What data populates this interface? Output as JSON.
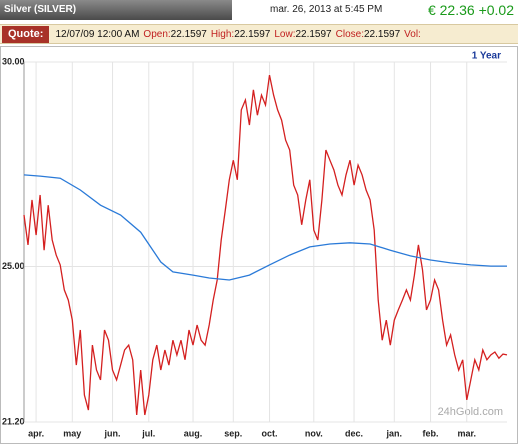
{
  "header": {
    "instrument": "Silver (SILVER)",
    "date": "mar. 26, 2013 at 5:45 PM",
    "price": "€ 22.36 +0.02"
  },
  "quote": {
    "title": "Quote:",
    "date": "12/07/09 12:00 AM",
    "fields": [
      {
        "label": "Open:",
        "value": 22.1597
      },
      {
        "label": "High:",
        "value": 22.1597
      },
      {
        "label": "Low:",
        "value": 22.1597
      },
      {
        "label": "Close:",
        "value": 22.1597
      },
      {
        "label": "Vol:"
      }
    ]
  },
  "chart_data": {
    "type": "line",
    "range": "1 Year",
    "watermark": "24hGold.com",
    "grid": true,
    "x": [
      0,
      1,
      2,
      3,
      4,
      5,
      6,
      7,
      8,
      9,
      10,
      11,
      12,
      13,
      14,
      15,
      16,
      17,
      18,
      19,
      20,
      21,
      22,
      23,
      24,
      25,
      26,
      27,
      28,
      29,
      30,
      31,
      32,
      33,
      34,
      35,
      36,
      37,
      38,
      39,
      40,
      41,
      42,
      43,
      44,
      45,
      46,
      47,
      48,
      49,
      50,
      51,
      52,
      53,
      54,
      55,
      56,
      57,
      58,
      59,
      60,
      61,
      62,
      63,
      64,
      65,
      66,
      67,
      68,
      69,
      70,
      71,
      72,
      73,
      74,
      75,
      76,
      77,
      78,
      79,
      80,
      81,
      82,
      83,
      84,
      85,
      86,
      87,
      88,
      89,
      90,
      91,
      92,
      93,
      94,
      95,
      96,
      97,
      98,
      99,
      100,
      101,
      102,
      103,
      104,
      105,
      106,
      107,
      108,
      109,
      110,
      111,
      112,
      113,
      114,
      115,
      116,
      117,
      118,
      119,
      120
    ],
    "xlim": [
      0,
      120
    ],
    "xticks": [
      {
        "value": 3,
        "label": "apr."
      },
      {
        "value": 12,
        "label": "may"
      },
      {
        "value": 22,
        "label": "jun."
      },
      {
        "value": 31,
        "label": "jul."
      },
      {
        "value": 42,
        "label": "aug."
      },
      {
        "value": 52,
        "label": "sep."
      },
      {
        "value": 61,
        "label": "oct."
      },
      {
        "value": 72,
        "label": "nov."
      },
      {
        "value": 82,
        "label": "dec."
      },
      {
        "value": 92,
        "label": "jan."
      },
      {
        "value": 101,
        "label": "feb."
      },
      {
        "value": 110,
        "label": "mar."
      }
    ],
    "ylim": [
      21.2,
      30
    ],
    "yticks": [
      {
        "value": 30,
        "label": "30.00"
      },
      {
        "value": 25,
        "label": "25.00"
      },
      {
        "value": 21.2,
        "label": "21.20"
      }
    ],
    "series": [
      {
        "color": "#d42020",
        "values": [
          26.26,
          25.53,
          26.63,
          25.77,
          26.75,
          25.4,
          26.5,
          25.65,
          25.28,
          25.04,
          24.43,
          24.18,
          23.69,
          22.59,
          23.45,
          21.86,
          21.49,
          23.08,
          22.47,
          22.23,
          23.45,
          23.2,
          22.47,
          22.23,
          22.59,
          22.96,
          23.08,
          22.72,
          21.37,
          22.47,
          21.37,
          21.86,
          22.72,
          23.08,
          22.47,
          22.96,
          22.59,
          23.2,
          22.84,
          23.2,
          22.72,
          23.45,
          23.08,
          23.57,
          23.2,
          23.08,
          23.57,
          24.18,
          24.67,
          25.65,
          26.38,
          27.12,
          27.6,
          27.12,
          28.83,
          29.07,
          28.46,
          29.32,
          28.7,
          29.19,
          28.95,
          29.68,
          29.19,
          28.83,
          28.58,
          28.09,
          27.85,
          26.99,
          26.75,
          26.02,
          26.63,
          27.12,
          25.89,
          25.65,
          26.63,
          27.85,
          27.6,
          27.36,
          26.99,
          26.75,
          27.24,
          27.6,
          26.99,
          27.48,
          27.24,
          26.87,
          26.63,
          25.89,
          24.18,
          23.2,
          23.69,
          23.08,
          23.69,
          23.94,
          24.18,
          24.43,
          24.18,
          24.79,
          25.53,
          24.92,
          23.94,
          24.18,
          24.67,
          24.43,
          23.69,
          23.08,
          23.33,
          22.84,
          22.47,
          22.72,
          21.74,
          22.23,
          22.72,
          22.47,
          22.96,
          22.72,
          22.84,
          22.91,
          22.76,
          22.86,
          22.84
        ]
      },
      {
        "color": "#2a7ad8",
        "x": [
          0,
          4,
          9,
          14,
          19,
          24,
          29,
          34,
          37,
          42,
          46,
          51,
          56,
          61,
          66,
          71,
          76,
          81,
          86,
          91,
          96,
          101,
          106,
          111,
          116,
          120
        ],
        "values": [
          27.24,
          27.21,
          27.16,
          26.87,
          26.5,
          26.26,
          25.84,
          25.11,
          24.87,
          24.79,
          24.72,
          24.67,
          24.79,
          25.04,
          25.28,
          25.48,
          25.55,
          25.58,
          25.55,
          25.4,
          25.26,
          25.16,
          25.09,
          25.04,
          25.01,
          25.01
        ]
      }
    ]
  }
}
